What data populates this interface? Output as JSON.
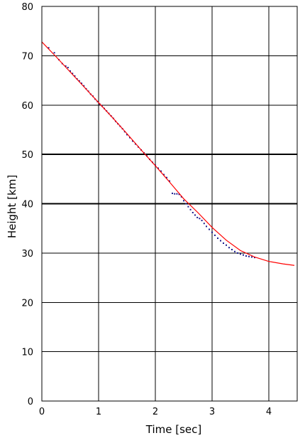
{
  "chart_data": {
    "type": "scatter",
    "title": "",
    "xlabel": "Time [sec]",
    "ylabel": "Height [km]",
    "xlim": [
      0,
      4.5
    ],
    "ylim": [
      0,
      80
    ],
    "x_ticks": [
      0,
      1,
      2,
      3,
      4
    ],
    "y_ticks": [
      0,
      10,
      20,
      30,
      40,
      50,
      60,
      70,
      80
    ],
    "x_tick_labels": [
      "0",
      "1",
      "2",
      "3",
      "4"
    ],
    "y_tick_labels": [
      "0",
      "10",
      "20",
      "30",
      "40",
      "50",
      "60",
      "70",
      "80"
    ],
    "grid": true,
    "bold_gridlines_y": [
      40,
      50
    ],
    "legend": "none",
    "series": [
      {
        "type": "scatter",
        "color": "#1a1a8c",
        "x": [
          0.12,
          0.22,
          0.3,
          0.36,
          0.42,
          0.46,
          0.5,
          0.54,
          0.58,
          0.62,
          0.66,
          0.7,
          0.74,
          0.78,
          0.82,
          0.86,
          0.9,
          0.94,
          0.98,
          1.02,
          1.06,
          1.1,
          1.14,
          1.18,
          1.22,
          1.26,
          1.3,
          1.34,
          1.38,
          1.42,
          1.46,
          1.5,
          1.55,
          1.6,
          1.65,
          1.7,
          1.75,
          1.8,
          1.85,
          1.9,
          1.95,
          2.0,
          2.05,
          2.1,
          2.15,
          2.2,
          2.25,
          2.3,
          2.34,
          2.38,
          2.42,
          2.46,
          2.5,
          2.54,
          2.58,
          2.62,
          2.66,
          2.7,
          2.74,
          2.78,
          2.82,
          2.86,
          2.9,
          2.95,
          3.0,
          3.05,
          3.1,
          3.15,
          3.2,
          3.25,
          3.3,
          3.35,
          3.4,
          3.45,
          3.5,
          3.55,
          3.6,
          3.65,
          3.7,
          3.75
        ],
        "y": [
          71.6,
          70.6,
          69.2,
          68.4,
          67.9,
          67.6,
          66.9,
          66.4,
          65.9,
          65.3,
          64.9,
          64.4,
          63.9,
          63.3,
          62.8,
          62.2,
          61.8,
          61.2,
          60.7,
          60.2,
          59.8,
          59.3,
          58.8,
          58.3,
          57.8,
          57.3,
          56.7,
          56.2,
          55.7,
          55.2,
          54.6,
          54.0,
          53.4,
          52.7,
          52.1,
          51.5,
          50.9,
          50.3,
          49.7,
          49.0,
          48.4,
          47.8,
          47.2,
          46.6,
          45.9,
          45.3,
          44.6,
          42.1,
          42.0,
          42.0,
          41.9,
          41.4,
          40.6,
          40.0,
          39.4,
          38.8,
          38.2,
          37.7,
          37.2,
          37.0,
          36.6,
          36.0,
          35.4,
          34.8,
          34.2,
          33.6,
          33.0,
          32.5,
          32.0,
          31.6,
          31.1,
          30.7,
          30.3,
          30.0,
          29.8,
          29.6,
          29.4,
          29.3,
          29.2,
          29.1
        ]
      },
      {
        "type": "line",
        "color": "#ff0000",
        "x": [
          0.0,
          0.25,
          0.5,
          0.75,
          1.0,
          1.25,
          1.5,
          1.75,
          2.0,
          2.25,
          2.5,
          2.75,
          3.0,
          3.25,
          3.5,
          3.75,
          4.0,
          4.25,
          4.45
        ],
        "y": [
          72.8,
          69.8,
          66.7,
          63.6,
          60.5,
          57.4,
          54.2,
          50.9,
          47.7,
          44.4,
          41.0,
          38.2,
          35.2,
          32.6,
          30.5,
          29.2,
          28.3,
          27.8,
          27.5
        ]
      }
    ]
  }
}
